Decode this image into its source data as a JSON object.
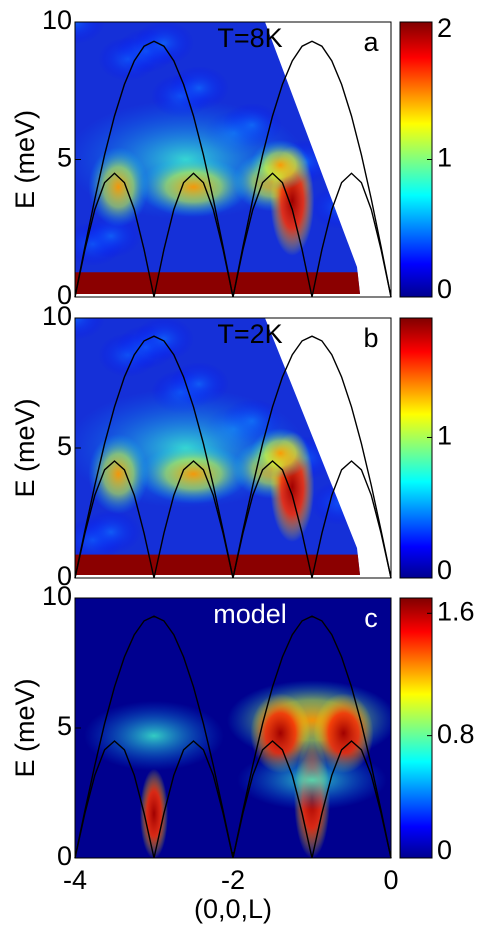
{
  "chart_data": [
    {
      "type": "heatmap",
      "annotation": "T=8K",
      "panel_label": "a",
      "y_label": "E (meV)",
      "xlim": [
        -4,
        0
      ],
      "ylim": [
        0,
        10
      ],
      "yticks": [
        0,
        5,
        10
      ],
      "colorbar": {
        "lim": [
          0,
          2
        ],
        "ticks": [
          0,
          1,
          2
        ]
      },
      "curves": [
        {
          "x": [
            -4,
            -3.875,
            -3.75,
            -3.625,
            -3.5,
            -3.375,
            -3.25,
            -3.125,
            -3,
            -2.875,
            -2.75,
            -2.625,
            -2.5,
            -2.375,
            -2.25,
            -2.125,
            -2,
            -1.875,
            -1.75,
            -1.625,
            -1.5,
            -1.375,
            -1.25,
            -1.125,
            -1,
            -0.875,
            -0.75,
            -0.625,
            -0.5,
            -0.375,
            -0.25,
            -0.125,
            0
          ],
          "values": [
            0,
            1.82,
            3.56,
            5.17,
            6.58,
            7.73,
            8.59,
            9.12,
            9.3,
            9.12,
            8.59,
            7.73,
            6.58,
            5.17,
            3.56,
            1.82,
            0,
            1.82,
            3.56,
            5.17,
            6.58,
            7.73,
            8.59,
            9.12,
            9.3,
            9.12,
            8.59,
            7.73,
            6.58,
            5.17,
            3.56,
            1.82,
            0
          ]
        },
        {
          "x": [
            -4,
            -3.875,
            -3.75,
            -3.625,
            -3.5,
            -3.375,
            -3.25,
            -3.125,
            -3,
            -2.875,
            -2.75,
            -2.625,
            -2.5,
            -2.375,
            -2.25,
            -2.125,
            -2,
            -1.875,
            -1.75,
            -1.625,
            -1.5,
            -1.375,
            -1.25,
            -1.125,
            -1,
            -0.875,
            -0.75,
            -0.625,
            -0.5,
            -0.375,
            -0.25,
            -0.125,
            0
          ],
          "values": [
            0,
            1.72,
            3.18,
            4.16,
            4.5,
            4.16,
            3.18,
            1.72,
            0,
            1.72,
            3.18,
            4.16,
            4.5,
            4.16,
            3.18,
            1.72,
            0,
            1.72,
            3.18,
            4.16,
            4.5,
            4.16,
            3.18,
            1.72,
            0,
            1.72,
            3.18,
            4.16,
            4.5,
            4.16,
            3.18,
            1.72,
            0
          ]
        }
      ]
    },
    {
      "type": "heatmap",
      "annotation": "T=2K",
      "panel_label": "b",
      "y_label": "E (meV)",
      "xlim": [
        -4,
        0
      ],
      "ylim": [
        0,
        10
      ],
      "yticks": [
        0,
        5,
        10
      ],
      "colorbar": {
        "lim": [
          0,
          1.85
        ],
        "ticks": [
          0,
          1
        ]
      },
      "curves": [
        {
          "x": [
            -4,
            -3.875,
            -3.75,
            -3.625,
            -3.5,
            -3.375,
            -3.25,
            -3.125,
            -3,
            -2.875,
            -2.75,
            -2.625,
            -2.5,
            -2.375,
            -2.25,
            -2.125,
            -2,
            -1.875,
            -1.75,
            -1.625,
            -1.5,
            -1.375,
            -1.25,
            -1.125,
            -1,
            -0.875,
            -0.75,
            -0.625,
            -0.5,
            -0.375,
            -0.25,
            -0.125,
            0
          ],
          "values": [
            0,
            1.82,
            3.56,
            5.17,
            6.58,
            7.73,
            8.59,
            9.12,
            9.3,
            9.12,
            8.59,
            7.73,
            6.58,
            5.17,
            3.56,
            1.82,
            0,
            1.82,
            3.56,
            5.17,
            6.58,
            7.73,
            8.59,
            9.12,
            9.3,
            9.12,
            8.59,
            7.73,
            6.58,
            5.17,
            3.56,
            1.82,
            0
          ]
        },
        {
          "x": [
            -4,
            -3.875,
            -3.75,
            -3.625,
            -3.5,
            -3.375,
            -3.25,
            -3.125,
            -3,
            -2.875,
            -2.75,
            -2.625,
            -2.5,
            -2.375,
            -2.25,
            -2.125,
            -2,
            -1.875,
            -1.75,
            -1.625,
            -1.5,
            -1.375,
            -1.25,
            -1.125,
            -1,
            -0.875,
            -0.75,
            -0.625,
            -0.5,
            -0.375,
            -0.25,
            -0.125,
            0
          ],
          "values": [
            0,
            1.72,
            3.18,
            4.16,
            4.5,
            4.16,
            3.18,
            1.72,
            0,
            1.72,
            3.18,
            4.16,
            4.5,
            4.16,
            3.18,
            1.72,
            0,
            1.72,
            3.18,
            4.16,
            4.5,
            4.16,
            3.18,
            1.72,
            0,
            1.72,
            3.18,
            4.16,
            4.5,
            4.16,
            3.18,
            1.72,
            0
          ]
        }
      ]
    },
    {
      "type": "heatmap",
      "annotation": "model",
      "panel_label": "c",
      "y_label": "E (meV)",
      "x_label": "(0,0,L)",
      "xlim": [
        -4,
        0
      ],
      "ylim": [
        0,
        10
      ],
      "yticks": [
        0,
        5,
        10
      ],
      "xticks": [
        -4,
        -2,
        0
      ],
      "colorbar": {
        "lim": [
          0,
          1.7
        ],
        "ticks": [
          0,
          0.8,
          1.6
        ]
      },
      "curves": [
        {
          "x": [
            -4,
            -3.875,
            -3.75,
            -3.625,
            -3.5,
            -3.375,
            -3.25,
            -3.125,
            -3,
            -2.875,
            -2.75,
            -2.625,
            -2.5,
            -2.375,
            -2.25,
            -2.125,
            -2,
            -1.875,
            -1.75,
            -1.625,
            -1.5,
            -1.375,
            -1.25,
            -1.125,
            -1,
            -0.875,
            -0.75,
            -0.625,
            -0.5,
            -0.375,
            -0.25,
            -0.125,
            0
          ],
          "values": [
            0,
            1.82,
            3.56,
            5.17,
            6.58,
            7.73,
            8.59,
            9.12,
            9.3,
            9.12,
            8.59,
            7.73,
            6.58,
            5.17,
            3.56,
            1.82,
            0,
            1.82,
            3.56,
            5.17,
            6.58,
            7.73,
            8.59,
            9.12,
            9.3,
            9.12,
            8.59,
            7.73,
            6.58,
            5.17,
            3.56,
            1.82,
            0
          ]
        },
        {
          "x": [
            -4,
            -3.875,
            -3.75,
            -3.625,
            -3.5,
            -3.375,
            -3.25,
            -3.125,
            -3,
            -2.875,
            -2.75,
            -2.625,
            -2.5,
            -2.375,
            -2.25,
            -2.125,
            -2,
            -1.875,
            -1.75,
            -1.625,
            -1.5,
            -1.375,
            -1.25,
            -1.125,
            -1,
            -0.875,
            -0.75,
            -0.625,
            -0.5,
            -0.375,
            -0.25,
            -0.125,
            0
          ],
          "values": [
            0,
            1.72,
            3.18,
            4.16,
            4.5,
            4.16,
            3.18,
            1.72,
            0,
            1.72,
            3.18,
            4.16,
            4.5,
            4.16,
            3.18,
            1.72,
            0,
            1.72,
            3.18,
            4.16,
            4.5,
            4.16,
            3.18,
            1.72,
            0,
            1.72,
            3.18,
            4.16,
            4.5,
            4.16,
            3.18,
            1.72,
            0
          ]
        }
      ]
    }
  ]
}
